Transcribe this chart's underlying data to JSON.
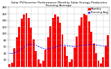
{
  "title": "Solar PV/Inverter Performance Monthly Solar Energy Production Running Average",
  "bar_values": [
    8,
    12,
    55,
    90,
    120,
    145,
    158,
    162,
    148,
    118,
    82,
    48,
    22,
    10,
    18,
    52,
    88,
    122,
    148,
    158,
    152,
    132,
    98,
    62,
    32,
    14,
    22,
    58,
    92,
    125,
    150,
    160,
    155,
    138,
    105,
    70,
    40,
    18,
    10,
    28,
    62,
    95
  ],
  "running_avg": [
    40,
    40,
    42,
    45,
    50,
    55,
    60,
    65,
    68,
    68,
    67,
    65,
    62,
    58,
    55,
    54,
    54,
    55,
    57,
    60,
    62,
    64,
    65,
    65,
    64,
    63,
    62,
    62,
    62,
    63,
    64,
    65,
    66,
    67,
    67,
    67,
    66,
    65,
    64,
    63,
    63,
    63
  ],
  "bar_color": "#FF0000",
  "avg_color": "#0000FF",
  "bg_color": "#FFFFFF",
  "grid_color": "#AAAAAA",
  "ylim": [
    0,
    180
  ],
  "ytick_values": [
    20,
    40,
    60,
    80,
    100,
    120,
    140,
    160,
    180
  ],
  "title_fontsize": 3.2,
  "tick_fontsize": 2.8,
  "legend_fontsize": 2.8
}
